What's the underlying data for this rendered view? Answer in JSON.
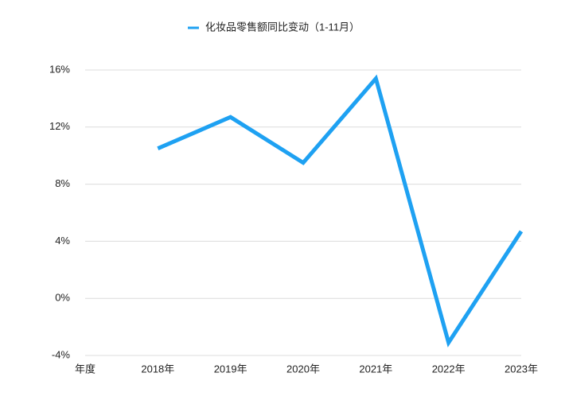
{
  "chart_data": {
    "type": "line",
    "categories": [
      "年度",
      "2018年",
      "2019年",
      "2020年",
      "2021年",
      "2022年",
      "2023年"
    ],
    "series": [
      {
        "name": "化妆品零售额同比变动（1-11月）",
        "color": "#1ea1f2",
        "values": [
          null,
          10.5,
          12.7,
          9.5,
          15.4,
          -3.1,
          4.7
        ]
      }
    ],
    "ylim": [
      -4,
      16
    ],
    "yticks": [
      {
        "value": -4,
        "label": "-4%"
      },
      {
        "value": 0,
        "label": "0%"
      },
      {
        "value": 4,
        "label": "4%"
      },
      {
        "value": 8,
        "label": "8%"
      },
      {
        "value": 12,
        "label": "12%"
      },
      {
        "value": 16,
        "label": "16%"
      }
    ],
    "grid": true,
    "legend": "top"
  }
}
